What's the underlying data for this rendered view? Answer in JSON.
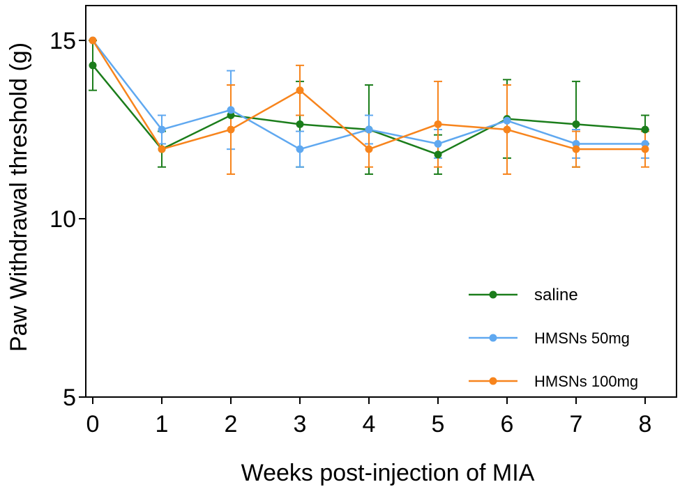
{
  "chart_data": {
    "type": "line",
    "title": "",
    "xlabel": "Weeks post-injection of MIA",
    "ylabel": "Paw Withdrawal threshold (g)",
    "x": [
      0,
      1,
      2,
      3,
      4,
      5,
      6,
      7,
      8
    ],
    "x_tick_labels": [
      "0",
      "1",
      "2",
      "3",
      "4",
      "5",
      "6",
      "7",
      "8"
    ],
    "xlim": [
      0,
      8.5
    ],
    "y_ticks": [
      5,
      10,
      15
    ],
    "y_tick_labels": [
      "5",
      "10",
      "15"
    ],
    "ylim": [
      5,
      16.1
    ],
    "grid": false,
    "legend_position": "bottom-right",
    "error_bars": true,
    "series": [
      {
        "name": "saline",
        "color": "#1b7d1b",
        "values": [
          14.3,
          11.95,
          12.9,
          12.65,
          12.5,
          11.8,
          12.8,
          12.65,
          12.5
        ],
        "errors": [
          0.7,
          0.5,
          0.0,
          1.2,
          1.25,
          0.55,
          1.1,
          1.2,
          0.4
        ]
      },
      {
        "name": "HMSNs 50mg",
        "color": "#5fa8f0",
        "values": [
          15.0,
          12.5,
          13.05,
          11.95,
          12.5,
          12.1,
          12.75,
          12.1,
          12.1
        ],
        "errors": [
          0.0,
          0.4,
          1.1,
          0.5,
          0.4,
          0.4,
          0.0,
          0.4,
          0.4
        ]
      },
      {
        "name": "HMSNs 100mg",
        "color": "#f7841c",
        "values": [
          15.0,
          11.95,
          12.5,
          13.6,
          11.95,
          12.65,
          12.5,
          11.95,
          11.95
        ],
        "errors": [
          0.0,
          0.0,
          1.25,
          0.7,
          0.5,
          1.2,
          1.25,
          0.5,
          0.5
        ]
      }
    ]
  }
}
